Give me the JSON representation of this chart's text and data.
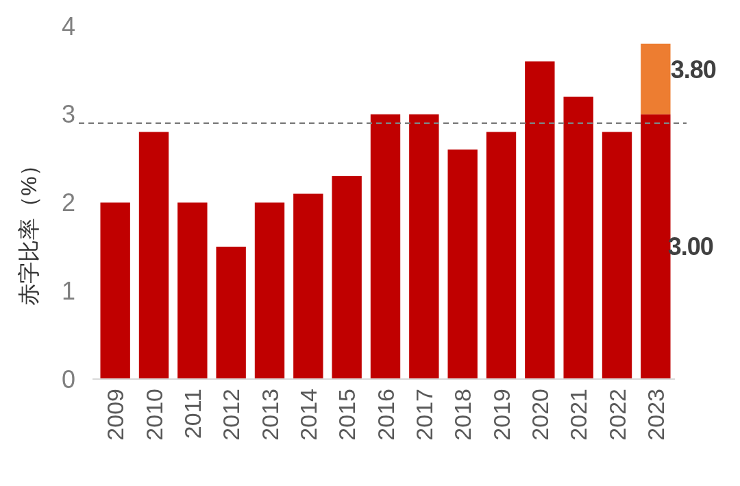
{
  "chart_data": {
    "type": "bar",
    "stacked": true,
    "ylabel": "赤字比率（%）",
    "categories": [
      "2009",
      "2010",
      "2011",
      "2012",
      "2013",
      "2014",
      "2015",
      "2016",
      "2017",
      "2018",
      "2019",
      "2020",
      "2021",
      "2022",
      "2023"
    ],
    "series": [
      {
        "color": "#c00000",
        "values": [
          2.0,
          2.8,
          2.0,
          1.5,
          2.0,
          2.1,
          2.3,
          3.0,
          3.0,
          2.6,
          2.8,
          3.6,
          3.2,
          2.8,
          3.0
        ],
        "value_labels": [
          null,
          null,
          null,
          null,
          null,
          null,
          null,
          null,
          null,
          null,
          null,
          null,
          null,
          null,
          "3.00"
        ]
      },
      {
        "color": "#ed7d31",
        "values": [
          null,
          null,
          null,
          null,
          null,
          null,
          null,
          null,
          null,
          null,
          null,
          null,
          null,
          null,
          0.8
        ]
      }
    ],
    "totals": [
      null,
      null,
      null,
      null,
      null,
      null,
      null,
      null,
      null,
      null,
      null,
      null,
      null,
      null,
      "3.80"
    ],
    "ylim": [
      0,
      4
    ],
    "yticks": [
      0,
      1,
      2,
      3,
      4
    ],
    "grid": false,
    "ref_lines": [
      {
        "axis": "y",
        "value": 2.9,
        "color": "#808080",
        "line_style": "dashed"
      }
    ]
  }
}
